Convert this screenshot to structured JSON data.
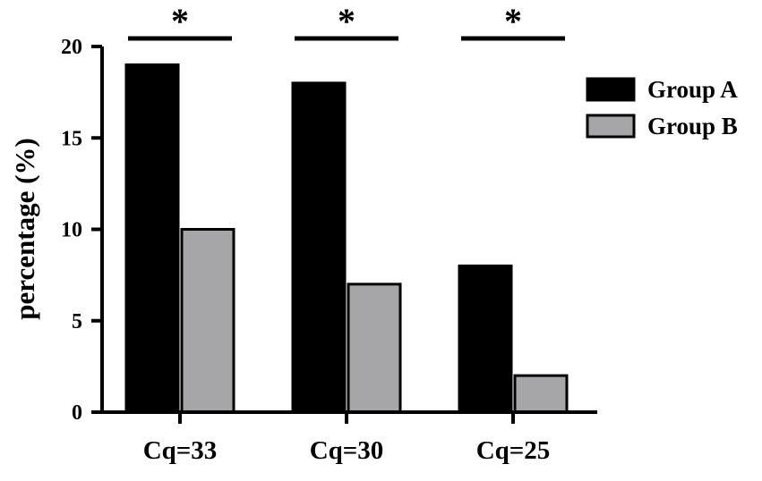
{
  "chart_data": {
    "type": "bar",
    "title": "",
    "xlabel": "",
    "ylabel": "percentage (%)",
    "ylim": [
      0,
      20
    ],
    "yticks": [
      0,
      5,
      10,
      15,
      20
    ],
    "categories": [
      "Cq=33",
      "Cq=30",
      "Cq=25"
    ],
    "series": [
      {
        "name": "Group A",
        "values": [
          19,
          18,
          8
        ],
        "color": "#000000"
      },
      {
        "name": "Group B",
        "values": [
          10,
          7,
          2
        ],
        "color": "#a6a6a8"
      }
    ],
    "significance": [
      "*",
      "*",
      "*"
    ],
    "legend_position": "top-right",
    "grid": false
  }
}
